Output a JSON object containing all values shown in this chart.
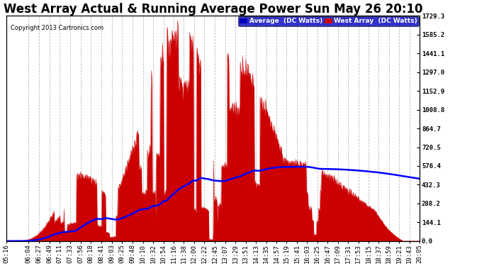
{
  "title": "West Array Actual & Running Average Power Sun May 26 20:10",
  "copyright": "Copyright 2013 Cartronics.com",
  "ylabel_right_values": [
    1729.3,
    1585.2,
    1441.1,
    1297.0,
    1152.9,
    1008.8,
    864.7,
    720.5,
    576.4,
    432.3,
    288.2,
    144.1,
    0.0
  ],
  "ymax": 1729.3,
  "ymin": 0.0,
  "legend_avg_label": "Average  (DC Watts)",
  "legend_west_label": "West Array  (DC Watts)",
  "legend_avg_bg": "#0000bb",
  "legend_west_bg": "#cc0000",
  "fill_color": "#cc0000",
  "line_color": "#0000ff",
  "background_color": "#ffffff",
  "grid_color": "#aaaaaa",
  "title_fontsize": 12,
  "tick_fontsize": 6.5,
  "x_tick_labels": [
    "05:16",
    "06:04",
    "06:27",
    "06:49",
    "07:11",
    "07:33",
    "07:56",
    "08:18",
    "08:41",
    "09:03",
    "09:25",
    "09:48",
    "10:10",
    "10:32",
    "10:54",
    "11:16",
    "11:38",
    "12:00",
    "12:22",
    "12:45",
    "13:07",
    "13:29",
    "13:51",
    "14:13",
    "14:35",
    "14:57",
    "15:19",
    "15:41",
    "16:03",
    "16:25",
    "16:47",
    "17:09",
    "17:31",
    "17:53",
    "18:15",
    "18:37",
    "18:59",
    "19:21",
    "19:43",
    "20:05"
  ]
}
